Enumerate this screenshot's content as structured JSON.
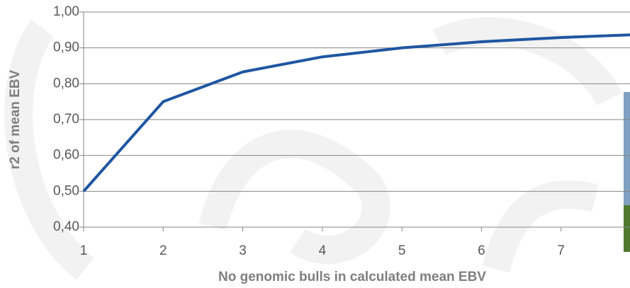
{
  "chart_data": {
    "type": "line",
    "x_label": "No genomic bulls in calculated mean EBV",
    "y_label": "r2 of mean EBV",
    "x": [
      1,
      2,
      3,
      4,
      5,
      6,
      7,
      8
    ],
    "series": [
      {
        "name": "r2 of mean EBV",
        "color": "#1f56a2",
        "values": [
          0.5,
          0.75,
          0.833,
          0.875,
          0.9,
          0.917,
          0.929,
          0.9375
        ]
      }
    ],
    "xlim": [
      1,
      8
    ],
    "xticks": [
      1,
      2,
      3,
      4,
      5,
      6,
      7
    ],
    "ylim": [
      0.4,
      1.0
    ],
    "yticks": [
      {
        "value": 0.4,
        "label": "0,40"
      },
      {
        "value": 0.5,
        "label": "0,50"
      },
      {
        "value": 0.6,
        "label": "0,60"
      },
      {
        "value": 0.7,
        "label": "0,70"
      },
      {
        "value": 0.8,
        "label": "0,80"
      },
      {
        "value": 0.9,
        "label": "0,90"
      },
      {
        "value": 1.0,
        "label": "1,00"
      }
    ],
    "grid": true
  }
}
